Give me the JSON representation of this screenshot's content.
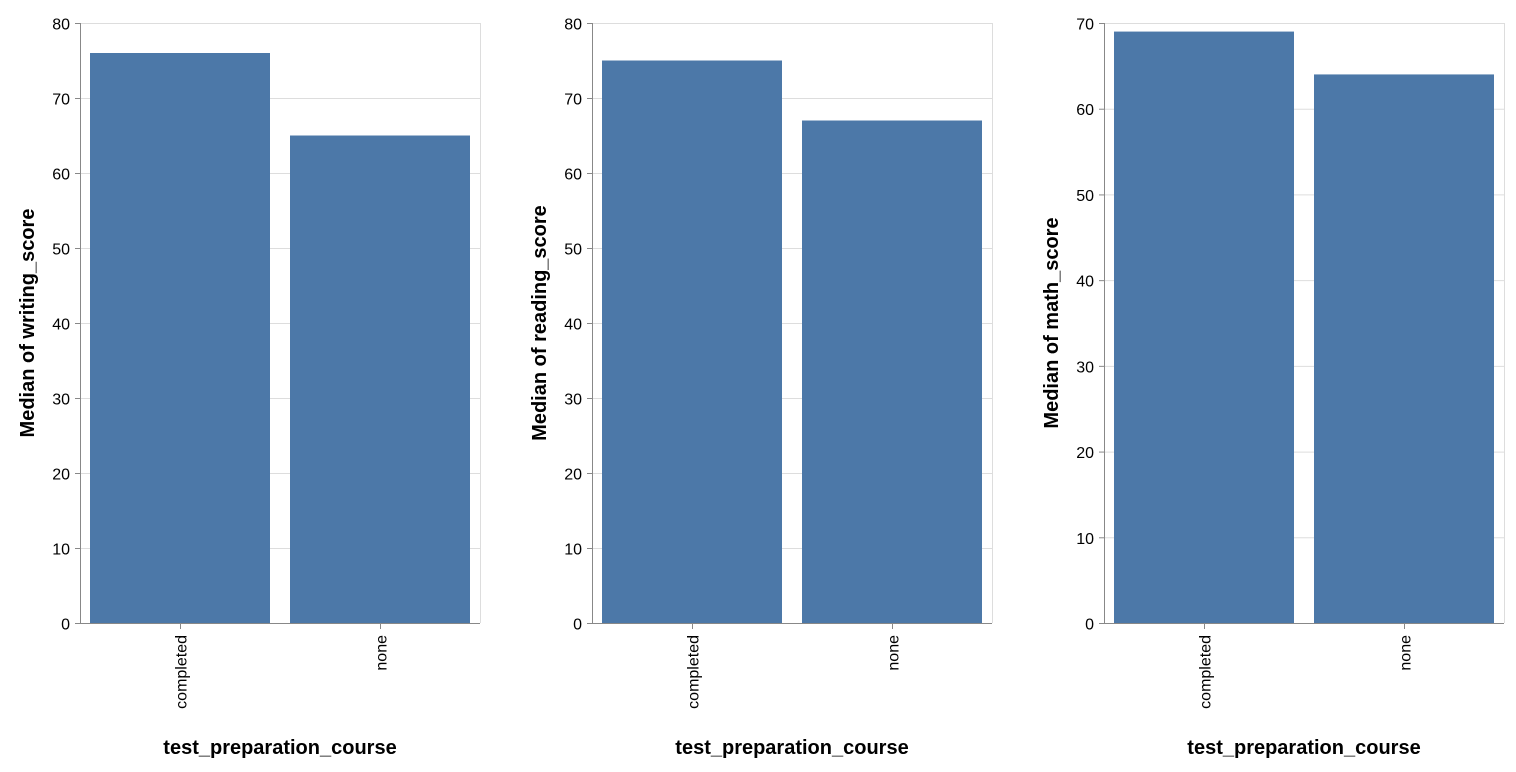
{
  "chart_data": [
    {
      "type": "bar",
      "categories": [
        "completed",
        "none"
      ],
      "values": [
        76,
        65
      ],
      "xlabel": "test_preparation_course",
      "ylabel": "Median of writing_score",
      "ylim": [
        0,
        80
      ],
      "yticks": [
        0,
        10,
        20,
        30,
        40,
        50,
        60,
        70,
        80
      ],
      "grid": true
    },
    {
      "type": "bar",
      "categories": [
        "completed",
        "none"
      ],
      "values": [
        75,
        67
      ],
      "xlabel": "test_preparation_course",
      "ylabel": "Median of reading_score",
      "ylim": [
        0,
        80
      ],
      "yticks": [
        0,
        10,
        20,
        30,
        40,
        50,
        60,
        70,
        80
      ],
      "grid": true
    },
    {
      "type": "bar",
      "categories": [
        "completed",
        "none"
      ],
      "values": [
        69,
        64
      ],
      "xlabel": "test_preparation_course",
      "ylabel": "Median of math_score",
      "ylim": [
        0,
        70
      ],
      "yticks": [
        0,
        10,
        20,
        30,
        40,
        50,
        60,
        70
      ],
      "grid": true
    }
  ],
  "colors": {
    "bar": "#4c78a8",
    "grid": "#dddddd",
    "axis": "#888888",
    "text": "#000000"
  }
}
